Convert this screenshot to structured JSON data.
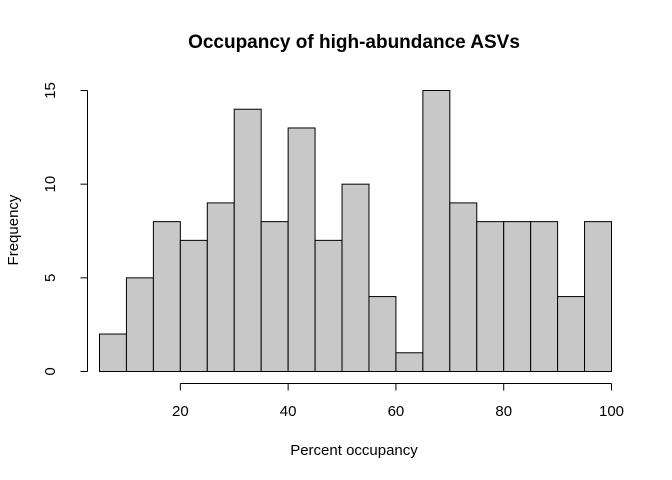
{
  "chart_data": {
    "type": "bar",
    "title": "Occupancy of high-abundance ASVs",
    "xlabel": "Percent occupancy",
    "ylabel": "Frequency",
    "bin_edges": [
      5,
      10,
      15,
      20,
      25,
      30,
      35,
      40,
      45,
      50,
      55,
      60,
      65,
      70,
      75,
      80,
      85,
      90,
      95,
      100
    ],
    "values": [
      2,
      5,
      8,
      7,
      9,
      14,
      8,
      13,
      7,
      10,
      4,
      1,
      15,
      9,
      8,
      8,
      8,
      4,
      8
    ],
    "xlim": [
      5,
      100
    ],
    "ylim": [
      0,
      15
    ],
    "x_ticks": [
      20,
      40,
      60,
      80,
      100
    ],
    "y_ticks": [
      0,
      5,
      10,
      15
    ],
    "bar_fill": "#c8c8c8",
    "bar_stroke": "#000000",
    "grid": false,
    "legend": "none"
  }
}
